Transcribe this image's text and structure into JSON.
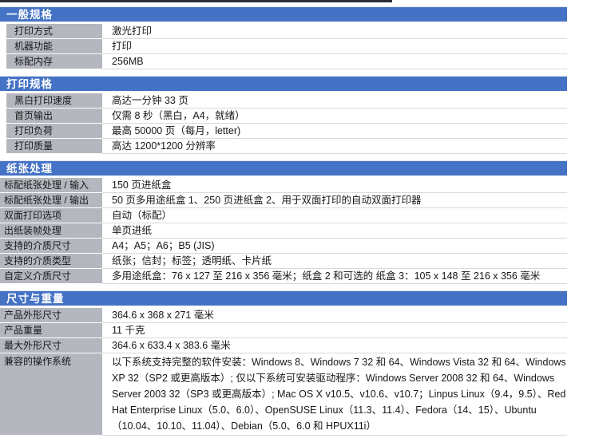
{
  "colors": {
    "section_header_bg": "#4472c4",
    "section_header_text": "#ffffff",
    "label_cell_bg": "#b4b7bd",
    "row_divider": "#d9d9d9",
    "top_strip": "#2d2d33",
    "body_text": "#17171c"
  },
  "table": {
    "sections": [
      {
        "title": "一般规格",
        "rows": [
          {
            "label": "打印方式",
            "value": "激光打印"
          },
          {
            "label": "机器功能",
            "value": "打印"
          },
          {
            "label": "标配内存",
            "value": "256MB"
          }
        ]
      },
      {
        "title": "打印规格",
        "rows": [
          {
            "label": "黑白打印速度",
            "value": "高达一分钟 33 页"
          },
          {
            "label": "首页输出",
            "value": "仅需 8 秒（黑白，A4，就绪）"
          },
          {
            "label": "打印负荷",
            "value": "最高 50000 页（每月，letter)"
          },
          {
            "label": "打印质量",
            "value": "高达 1200*1200 分辨率"
          }
        ]
      },
      {
        "title": "纸张处理",
        "rows": [
          {
            "label": "标配纸张处理 / 输入",
            "value": "150 页进纸盒"
          },
          {
            "label": "标配纸张处理 / 输出",
            "value": "50 页多用途纸盒 1、250 页进纸盒 2、用于双面打印的自动双面打印器"
          },
          {
            "label": "双面打印选项",
            "value": "自动（标配）"
          },
          {
            "label": "出纸装帧处理",
            "value": "单页进纸"
          },
          {
            "label": "支持的介质尺寸",
            "value": "A4；A5；A6；B5 (JIS)"
          },
          {
            "label": "支持的介质类型",
            "value": "纸张；信封；标签；透明纸、卡片纸"
          },
          {
            "label": "自定义介质尺寸",
            "value": "多用途纸盒：76 x 127 至 216 x 356 毫米；纸盒 2 和可选的 纸盒 3：105 x 148 至 216 x 356 毫米"
          }
        ]
      },
      {
        "title": "尺寸与重量",
        "rows": [
          {
            "label": "产品外形尺寸",
            "value": "364.6 x 368 x 271 毫米"
          },
          {
            "label": "产品重量",
            "value": "11 千克"
          },
          {
            "label": "最大外形尺寸",
            "value": "364.6 x 633.4 x 383.6 毫米"
          },
          {
            "label": "兼容的操作系统",
            "value": "以下系统支持完整的软件安装：Windows 8、Windows 7 32 和 64、Windows Vista 32 和 64、Windows XP 32（SP2 或更高版本）; 仅以下系统可安装驱动程序：Windows Server 2008 32 和 64、Windows Server 2003 32（SP3 或更高版本）; Mac OS X v10.5、v10.6、v10.7；Linpus Linux（9.4，9.5）、Red Hat Enterprise Linux（5.0、6.0）、OpenSUSE Linux（11.3、11.4）、Fedora（14、15）、Ubuntu（10.04、10.10、11.04）、Debian（5.0、6.0 和 HPUX11i）"
          }
        ]
      }
    ]
  }
}
